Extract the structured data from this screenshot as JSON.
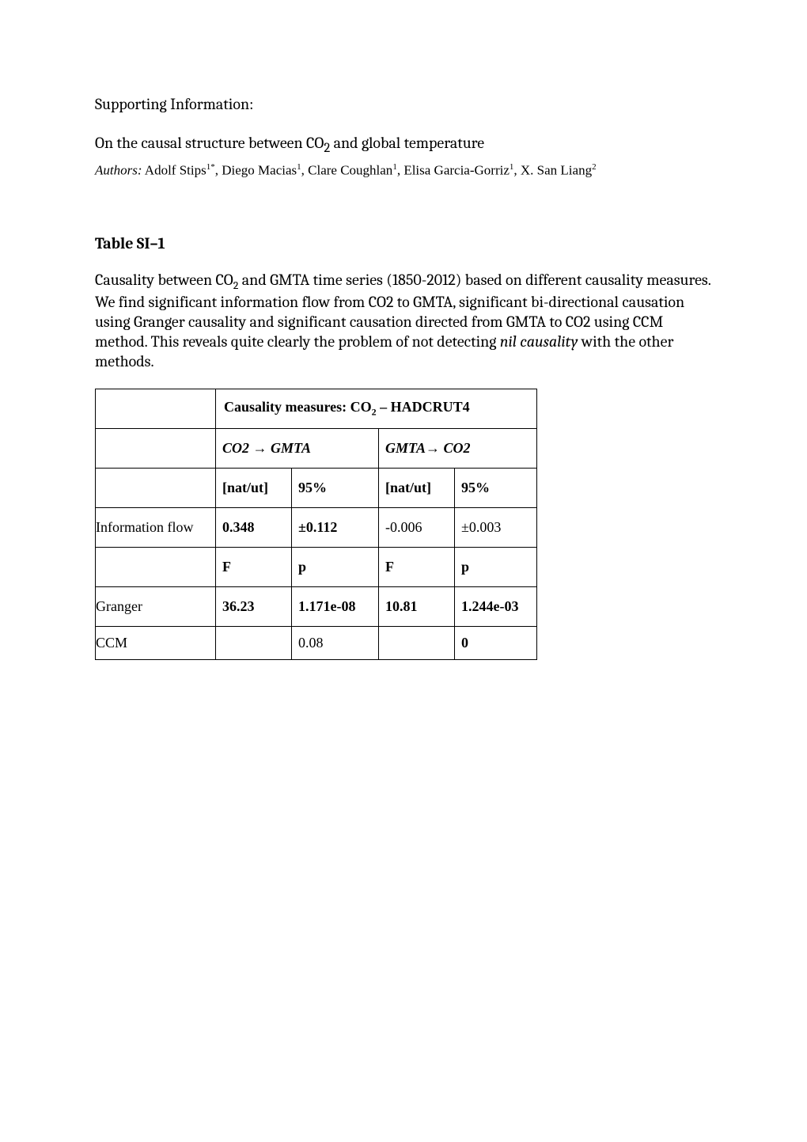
{
  "supporting_label": "Supporting Information:",
  "title_pre": "On the causal structure between CO",
  "title_sub": "2",
  "title_post": " and global temperature",
  "authors": {
    "label": "Authors:",
    "text_a": " Adolf Stips",
    "sup_a": "1*",
    "text_b": ", Diego Macias",
    "sup_b": "1",
    "text_c": ", Clare Coughlan",
    "sup_c": "1",
    "text_d": ", Elisa Garcia-Gorriz",
    "sup_d": "1",
    "text_e": ", X. San Liang",
    "sup_e": "2"
  },
  "table_label": "Table SI–1",
  "caption_a": "Causality between CO",
  "caption_sub": "2",
  "caption_b": " and GMTA time series (1850-2012) based on different causality measures. We find significant information flow from CO2 to GMTA, significant bi-directional causation using Granger causality and significant causation directed from GMTA to CO2 using CCM method. This reveals quite clearly the problem of not detecting ",
  "caption_ital": "nil causality",
  "caption_c": " with the other methods.",
  "tbl": {
    "top_header_a": "Causality measures: CO",
    "top_header_sub": "2",
    "top_header_b": " – HADCRUT4",
    "dir_left": "CO2 → GMTA",
    "dir_right": "GMTA→ CO2",
    "unit_left": "[nat/ut]",
    "pct_left": "95%",
    "unit_right": "[nat/ut]",
    "pct_right": "95%",
    "row_info_label": "Information flow",
    "info_v1": "0.348",
    "info_v2": "±0.112",
    "info_v3": "-0.006",
    "info_v4": "±0.003",
    "F_left": "F",
    "p_left": "p",
    "F_right": "F",
    "p_right": "p",
    "row_granger_label": "Granger",
    "gr_v1": "36.23",
    "gr_v2": "1.171e-08",
    "gr_v3": "10.81",
    "gr_v4": "1.244e-03",
    "row_ccm_label": "CCM",
    "ccm_v2": "0.08",
    "ccm_v4": "0"
  },
  "style": {
    "text_color": "#000000",
    "bg_color": "#ffffff",
    "border_color": "#000000",
    "body_fontsize": 20,
    "table_fontsize": 18
  }
}
